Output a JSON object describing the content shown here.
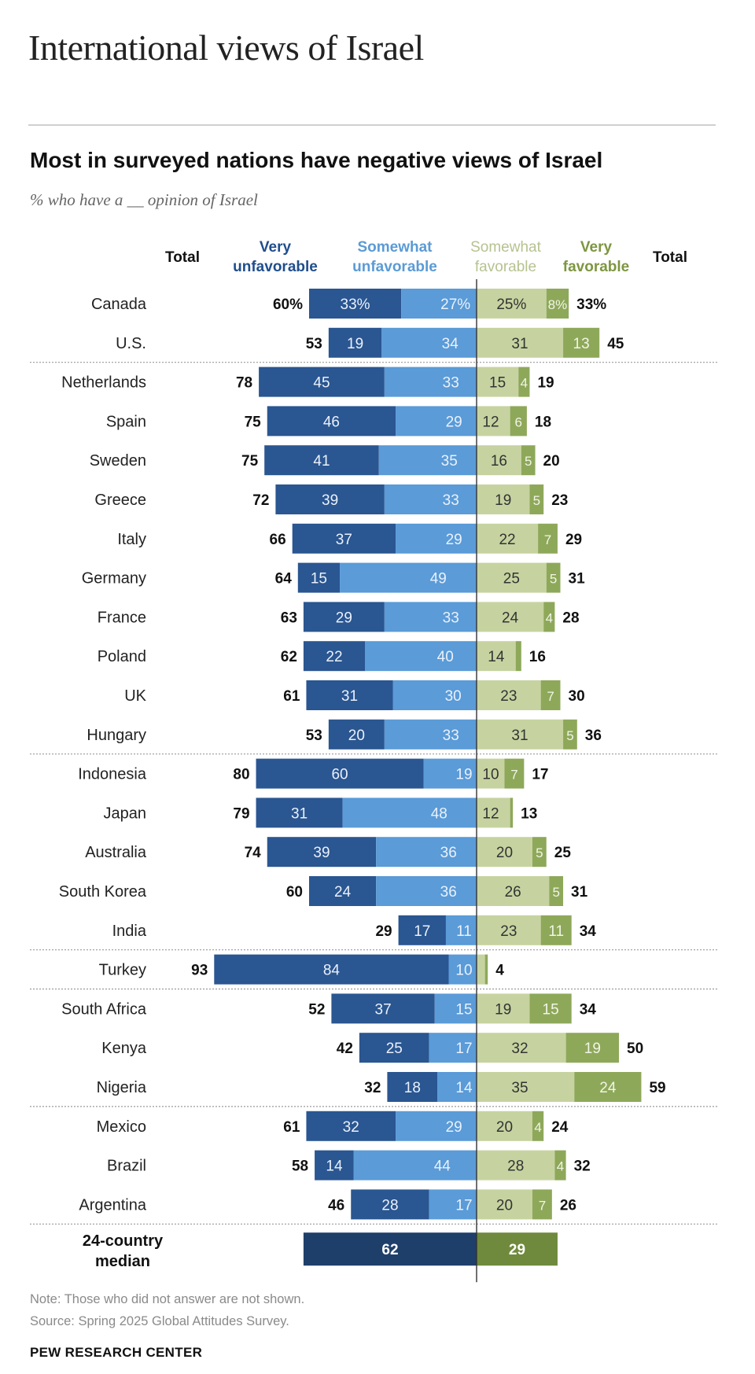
{
  "page": {
    "title": "International views of Israel",
    "chart_title": "Most in surveyed nations have negative views of Israel",
    "subtitle": "% who have a __ opinion of Israel",
    "note": "Note: Those who did not answer are not shown.",
    "source": "Source: Spring 2025 Global Attitudes Survey.",
    "brand": "PEW RESEARCH CENTER"
  },
  "colors": {
    "very_unfavorable": "#2a5691",
    "somewhat_unfavorable": "#5a9bd8",
    "somewhat_favorable": "#c6d3a0",
    "very_favorable": "#8ea85a",
    "median_unfavorable": "#1f3f6b",
    "median_favorable": "#6f8a3c",
    "header_unfav_very": "#1f4e8c",
    "header_unfav_somewhat": "#5b9bd5",
    "header_fav_somewhat": "#b6c290",
    "header_fav_very": "#7d9640"
  },
  "chart_data": {
    "type": "bar",
    "orientation": "horizontal-diverging",
    "headers": {
      "total_left": "Total",
      "very_unfavorable": [
        "Very",
        "unfavorable"
      ],
      "somewhat_unfavorable": [
        "Somewhat",
        "unfavorable"
      ],
      "somewhat_favorable": [
        "Somewhat",
        "favorable"
      ],
      "very_favorable": [
        "Very",
        "favorable"
      ],
      "total_right": "Total"
    },
    "series": [
      {
        "name": "Very unfavorable",
        "key": "vu"
      },
      {
        "name": "Somewhat unfavorable",
        "key": "su"
      },
      {
        "name": "Somewhat favorable",
        "key": "sf"
      },
      {
        "name": "Very favorable",
        "key": "vf"
      }
    ],
    "rows": [
      {
        "country": "Canada",
        "vu": 33,
        "su": 27,
        "sf": 25,
        "vf": 8,
        "unfav_total": 60,
        "fav_total": 33,
        "pct": true
      },
      {
        "country": "U.S.",
        "vu": 19,
        "su": 34,
        "sf": 31,
        "vf": 13,
        "unfav_total": 53,
        "fav_total": 45
      },
      {
        "country": "Netherlands",
        "vu": 45,
        "su": 33,
        "sf": 15,
        "vf": 4,
        "unfav_total": 78,
        "fav_total": 19
      },
      {
        "country": "Spain",
        "vu": 46,
        "su": 29,
        "sf": 12,
        "vf": 6,
        "unfav_total": 75,
        "fav_total": 18
      },
      {
        "country": "Sweden",
        "vu": 41,
        "su": 35,
        "sf": 16,
        "vf": 5,
        "unfav_total": 75,
        "fav_total": 20
      },
      {
        "country": "Greece",
        "vu": 39,
        "su": 33,
        "sf": 19,
        "vf": 5,
        "unfav_total": 72,
        "fav_total": 23
      },
      {
        "country": "Italy",
        "vu": 37,
        "su": 29,
        "sf": 22,
        "vf": 7,
        "unfav_total": 66,
        "fav_total": 29
      },
      {
        "country": "Germany",
        "vu": 15,
        "su": 49,
        "sf": 25,
        "vf": 5,
        "unfav_total": 64,
        "fav_total": 31
      },
      {
        "country": "France",
        "vu": 29,
        "su": 33,
        "sf": 24,
        "vf": 4,
        "unfav_total": 63,
        "fav_total": 28
      },
      {
        "country": "Poland",
        "vu": 22,
        "su": 40,
        "sf": 14,
        "vf": 2,
        "unfav_total": 62,
        "fav_total": 16,
        "vf_label": false
      },
      {
        "country": "UK",
        "vu": 31,
        "su": 30,
        "sf": 23,
        "vf": 7,
        "unfav_total": 61,
        "fav_total": 30
      },
      {
        "country": "Hungary",
        "vu": 20,
        "su": 33,
        "sf": 31,
        "vf": 5,
        "unfav_total": 53,
        "fav_total": 36
      },
      {
        "country": "Indonesia",
        "vu": 60,
        "su": 19,
        "sf": 10,
        "vf": 7,
        "unfav_total": 80,
        "fav_total": 17
      },
      {
        "country": "Japan",
        "vu": 31,
        "su": 48,
        "sf": 12,
        "vf": 1,
        "unfav_total": 79,
        "fav_total": 13,
        "vf_label": false
      },
      {
        "country": "Australia",
        "vu": 39,
        "su": 36,
        "sf": 20,
        "vf": 5,
        "unfav_total": 74,
        "fav_total": 25
      },
      {
        "country": "South Korea",
        "vu": 24,
        "su": 36,
        "sf": 26,
        "vf": 5,
        "unfav_total": 60,
        "fav_total": 31
      },
      {
        "country": "India",
        "vu": 17,
        "su": 11,
        "sf": 23,
        "vf": 11,
        "unfav_total": 29,
        "fav_total": 34
      },
      {
        "country": "Turkey",
        "vu": 84,
        "su": 10,
        "sf": 3,
        "vf": 1,
        "unfav_total": 93,
        "fav_total": 4,
        "sf_label": false,
        "vf_label": false
      },
      {
        "country": "South Africa",
        "vu": 37,
        "su": 15,
        "sf": 19,
        "vf": 15,
        "unfav_total": 52,
        "fav_total": 34
      },
      {
        "country": "Kenya",
        "vu": 25,
        "su": 17,
        "sf": 32,
        "vf": 19,
        "unfav_total": 42,
        "fav_total": 50
      },
      {
        "country": "Nigeria",
        "vu": 18,
        "su": 14,
        "sf": 35,
        "vf": 24,
        "unfav_total": 32,
        "fav_total": 59
      },
      {
        "country": "Mexico",
        "vu": 32,
        "su": 29,
        "sf": 20,
        "vf": 4,
        "unfav_total": 61,
        "fav_total": 24
      },
      {
        "country": "Brazil",
        "vu": 14,
        "su": 44,
        "sf": 28,
        "vf": 4,
        "unfav_total": 58,
        "fav_total": 32
      },
      {
        "country": "Argentina",
        "vu": 28,
        "su": 17,
        "sf": 20,
        "vf": 7,
        "unfav_total": 46,
        "fav_total": 26
      }
    ],
    "separators_after": [
      "U.S.",
      "Hungary",
      "India",
      "Turkey",
      "Nigeria",
      "Argentina"
    ],
    "median": {
      "label": [
        "24-country",
        "median"
      ],
      "unfavorable": 62,
      "favorable": 29
    }
  }
}
